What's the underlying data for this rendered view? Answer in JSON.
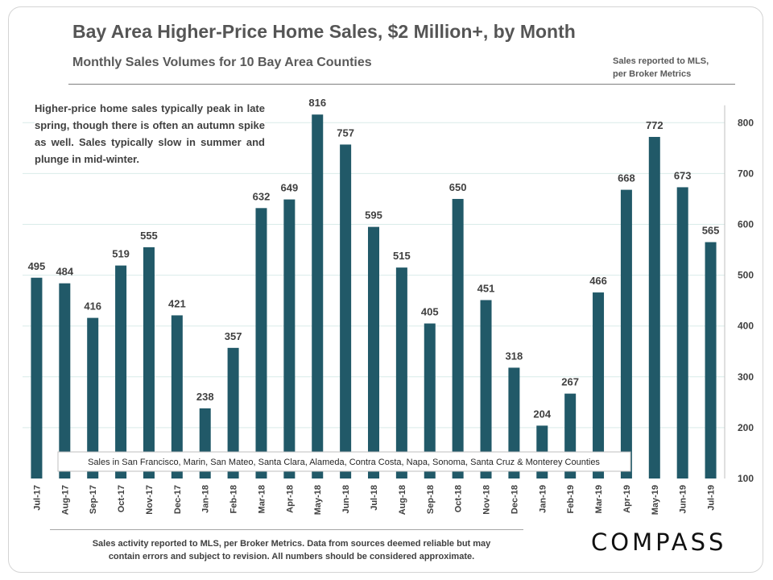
{
  "header": {
    "title": "Bay Area Higher-Price Home Sales, $2 Million+, by Month",
    "subtitle": "Monthly Sales Volumes for 10 Bay Area Counties",
    "source_note_line1": "Sales reported to MLS,",
    "source_note_line2": "per Broker Metrics"
  },
  "annotation": "Higher-price home sales typically peak in late spring, though there is often an autumn spike as well. Sales typically slow in summer and plunge in mid-winter.",
  "footer": {
    "line1": "Sales activity reported to MLS, per Broker Metrics. Data from sources deemed reliable but may",
    "line2": "contain errors and subject to revision. All numbers should be considered approximate."
  },
  "logo_text": "COMPASS",
  "colors": {
    "bar": "#215968",
    "gridline": "#d9ebe9",
    "axis_text": "#404040"
  },
  "chart_data": {
    "type": "bar",
    "title": "Bay Area Higher-Price Home Sales, $2 Million+, by Month",
    "subtitle": "Monthly Sales Volumes for 10 Bay Area Counties",
    "xlabel": "",
    "ylabel": "",
    "ylim": [
      100,
      850
    ],
    "yticks": [
      100,
      200,
      300,
      400,
      500,
      600,
      700,
      800
    ],
    "y_axis_position": "right",
    "grid": true,
    "categories": [
      "Jul-17",
      "Aug-17",
      "Sep-17",
      "Oct-17",
      "Nov-17",
      "Dec-17",
      "Jan-18",
      "Feb-18",
      "Mar-18",
      "Apr-18",
      "May-18",
      "Jun-18",
      "Jul-18",
      "Aug-18",
      "Sep-18",
      "Oct-18",
      "Nov-18",
      "Dec-18",
      "Jan-19",
      "Feb-19",
      "Mar-19",
      "Apr-19",
      "May-19",
      "Jun-19",
      "Jul-19"
    ],
    "values": [
      495,
      484,
      416,
      519,
      555,
      421,
      238,
      357,
      632,
      649,
      816,
      757,
      595,
      515,
      405,
      650,
      451,
      318,
      204,
      267,
      466,
      668,
      772,
      673,
      565
    ],
    "legend_box_text": "Sales in San Francisco, Marin, San Mateo, Santa Clara, Alameda, Contra Costa, Napa, Sonoma, Santa Cruz & Monterey Counties"
  }
}
